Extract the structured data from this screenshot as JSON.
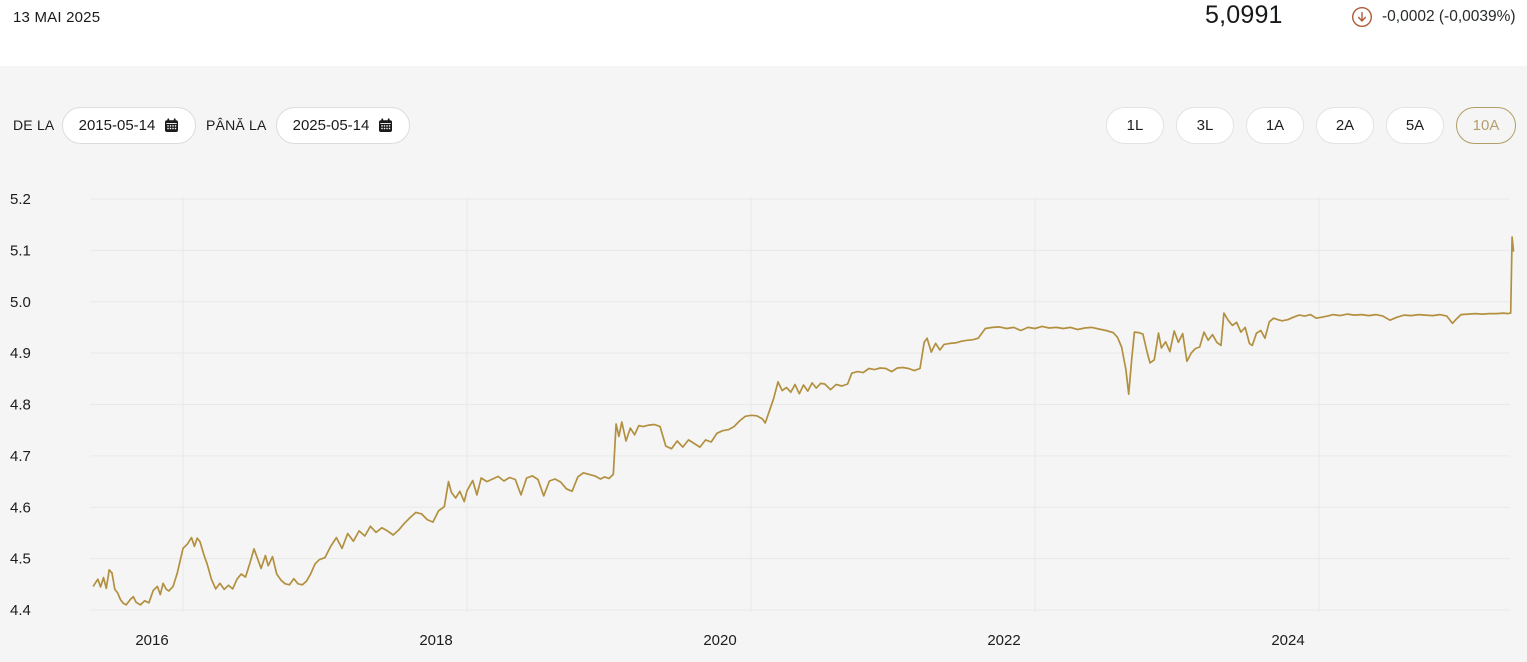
{
  "header": {
    "date": "13 MAI 2025",
    "price": "5,0991",
    "change": "-0,0002 (-0,0039%)",
    "change_icon": "circle-arrow-down-icon",
    "change_color": "#ae5b38"
  },
  "controls": {
    "from_label": "DE LA",
    "from_value": "2015-05-14",
    "to_label": "PÂNĂ LA",
    "to_value": "2025-05-14",
    "calendar_icon": "calendar-icon",
    "active_color": "#b19e66",
    "range_buttons": [
      {
        "label": "1L",
        "active": false
      },
      {
        "label": "3L",
        "active": false
      },
      {
        "label": "1A",
        "active": false
      },
      {
        "label": "2A",
        "active": false
      },
      {
        "label": "5A",
        "active": false
      },
      {
        "label": "10A",
        "active": true
      }
    ]
  },
  "chart_data": {
    "type": "line",
    "x_unit": "decimal_year",
    "x_ticks": [
      2016,
      2018,
      2020,
      2022,
      2024
    ],
    "y_ticks": [
      5.2,
      5.1,
      5.0,
      4.9,
      4.8,
      4.7,
      4.6,
      4.5,
      4.4
    ],
    "x_range": [
      2015.37,
      2025.42
    ],
    "y_range": [
      4.4,
      5.2
    ],
    "grid": true,
    "series": [
      {
        "color": "#b3903f",
        "points": [
          [
            2015.37,
            4.447
          ],
          [
            2015.4,
            4.46
          ],
          [
            2015.42,
            4.445
          ],
          [
            2015.44,
            4.463
          ],
          [
            2015.46,
            4.442
          ],
          [
            2015.48,
            4.478
          ],
          [
            2015.5,
            4.472
          ],
          [
            2015.52,
            4.44
          ],
          [
            2015.54,
            4.433
          ],
          [
            2015.56,
            4.42
          ],
          [
            2015.58,
            4.413
          ],
          [
            2015.6,
            4.41
          ],
          [
            2015.63,
            4.421
          ],
          [
            2015.65,
            4.426
          ],
          [
            2015.67,
            4.415
          ],
          [
            2015.7,
            4.41
          ],
          [
            2015.73,
            4.418
          ],
          [
            2015.76,
            4.414
          ],
          [
            2015.79,
            4.438
          ],
          [
            2015.82,
            4.446
          ],
          [
            2015.84,
            4.43
          ],
          [
            2015.86,
            4.452
          ],
          [
            2015.88,
            4.441
          ],
          [
            2015.9,
            4.437
          ],
          [
            2015.93,
            4.446
          ],
          [
            2015.96,
            4.472
          ],
          [
            2016.0,
            4.52
          ],
          [
            2016.03,
            4.528
          ],
          [
            2016.06,
            4.541
          ],
          [
            2016.08,
            4.524
          ],
          [
            2016.1,
            4.54
          ],
          [
            2016.12,
            4.533
          ],
          [
            2016.15,
            4.505
          ],
          [
            2016.17,
            4.49
          ],
          [
            2016.2,
            4.46
          ],
          [
            2016.23,
            4.441
          ],
          [
            2016.26,
            4.452
          ],
          [
            2016.29,
            4.44
          ],
          [
            2016.32,
            4.448
          ],
          [
            2016.35,
            4.441
          ],
          [
            2016.38,
            4.46
          ],
          [
            2016.41,
            4.47
          ],
          [
            2016.44,
            4.464
          ],
          [
            2016.47,
            4.49
          ],
          [
            2016.5,
            4.519
          ],
          [
            2016.52,
            4.504
          ],
          [
            2016.55,
            4.481
          ],
          [
            2016.58,
            4.506
          ],
          [
            2016.6,
            4.486
          ],
          [
            2016.63,
            4.504
          ],
          [
            2016.66,
            4.47
          ],
          [
            2016.69,
            4.458
          ],
          [
            2016.72,
            4.451
          ],
          [
            2016.75,
            4.449
          ],
          [
            2016.78,
            4.461
          ],
          [
            2016.81,
            4.451
          ],
          [
            2016.84,
            4.449
          ],
          [
            2016.87,
            4.456
          ],
          [
            2016.9,
            4.471
          ],
          [
            2016.93,
            4.49
          ],
          [
            2016.96,
            4.498
          ],
          [
            2017.0,
            4.502
          ],
          [
            2017.04,
            4.524
          ],
          [
            2017.08,
            4.541
          ],
          [
            2017.12,
            4.52
          ],
          [
            2017.16,
            4.549
          ],
          [
            2017.2,
            4.534
          ],
          [
            2017.24,
            4.554
          ],
          [
            2017.28,
            4.544
          ],
          [
            2017.32,
            4.563
          ],
          [
            2017.36,
            4.551
          ],
          [
            2017.4,
            4.56
          ],
          [
            2017.44,
            4.554
          ],
          [
            2017.48,
            4.546
          ],
          [
            2017.52,
            4.556
          ],
          [
            2017.56,
            4.569
          ],
          [
            2017.6,
            4.58
          ],
          [
            2017.64,
            4.59
          ],
          [
            2017.68,
            4.587
          ],
          [
            2017.72,
            4.576
          ],
          [
            2017.76,
            4.571
          ],
          [
            2017.8,
            4.593
          ],
          [
            2017.84,
            4.601
          ],
          [
            2017.87,
            4.65
          ],
          [
            2017.89,
            4.629
          ],
          [
            2017.92,
            4.618
          ],
          [
            2017.95,
            4.631
          ],
          [
            2017.98,
            4.611
          ],
          [
            2018.0,
            4.632
          ],
          [
            2018.04,
            4.652
          ],
          [
            2018.07,
            4.624
          ],
          [
            2018.1,
            4.657
          ],
          [
            2018.14,
            4.65
          ],
          [
            2018.18,
            4.655
          ],
          [
            2018.22,
            4.66
          ],
          [
            2018.26,
            4.651
          ],
          [
            2018.3,
            4.658
          ],
          [
            2018.34,
            4.654
          ],
          [
            2018.38,
            4.624
          ],
          [
            2018.42,
            4.657
          ],
          [
            2018.46,
            4.661
          ],
          [
            2018.5,
            4.654
          ],
          [
            2018.54,
            4.622
          ],
          [
            2018.58,
            4.651
          ],
          [
            2018.62,
            4.655
          ],
          [
            2018.66,
            4.649
          ],
          [
            2018.7,
            4.636
          ],
          [
            2018.74,
            4.631
          ],
          [
            2018.78,
            4.659
          ],
          [
            2018.82,
            4.667
          ],
          [
            2018.86,
            4.664
          ],
          [
            2018.9,
            4.661
          ],
          [
            2018.94,
            4.655
          ],
          [
            2018.97,
            4.659
          ],
          [
            2019.0,
            4.656
          ],
          [
            2019.03,
            4.664
          ],
          [
            2019.05,
            4.762
          ],
          [
            2019.07,
            4.738
          ],
          [
            2019.09,
            4.766
          ],
          [
            2019.12,
            4.729
          ],
          [
            2019.15,
            4.754
          ],
          [
            2019.18,
            4.741
          ],
          [
            2019.21,
            4.759
          ],
          [
            2019.24,
            4.757
          ],
          [
            2019.28,
            4.76
          ],
          [
            2019.32,
            4.761
          ],
          [
            2019.36,
            4.757
          ],
          [
            2019.4,
            4.719
          ],
          [
            2019.44,
            4.714
          ],
          [
            2019.48,
            4.729
          ],
          [
            2019.52,
            4.717
          ],
          [
            2019.56,
            4.731
          ],
          [
            2019.6,
            4.724
          ],
          [
            2019.64,
            4.717
          ],
          [
            2019.68,
            4.731
          ],
          [
            2019.72,
            4.727
          ],
          [
            2019.76,
            4.744
          ],
          [
            2019.8,
            4.749
          ],
          [
            2019.84,
            4.751
          ],
          [
            2019.88,
            4.757
          ],
          [
            2019.92,
            4.768
          ],
          [
            2019.96,
            4.777
          ],
          [
            2020.0,
            4.779
          ],
          [
            2020.04,
            4.778
          ],
          [
            2020.08,
            4.772
          ],
          [
            2020.1,
            4.764
          ],
          [
            2020.13,
            4.788
          ],
          [
            2020.16,
            4.812
          ],
          [
            2020.19,
            4.844
          ],
          [
            2020.22,
            4.827
          ],
          [
            2020.25,
            4.833
          ],
          [
            2020.28,
            4.824
          ],
          [
            2020.31,
            4.839
          ],
          [
            2020.34,
            4.821
          ],
          [
            2020.37,
            4.838
          ],
          [
            2020.4,
            4.826
          ],
          [
            2020.43,
            4.842
          ],
          [
            2020.46,
            4.832
          ],
          [
            2020.49,
            4.841
          ],
          [
            2020.52,
            4.84
          ],
          [
            2020.56,
            4.829
          ],
          [
            2020.6,
            4.839
          ],
          [
            2020.64,
            4.836
          ],
          [
            2020.68,
            4.84
          ],
          [
            2020.71,
            4.861
          ],
          [
            2020.75,
            4.864
          ],
          [
            2020.79,
            4.862
          ],
          [
            2020.83,
            4.87
          ],
          [
            2020.87,
            4.868
          ],
          [
            2020.91,
            4.871
          ],
          [
            2020.95,
            4.87
          ],
          [
            2020.99,
            4.864
          ],
          [
            2021.03,
            4.871
          ],
          [
            2021.07,
            4.872
          ],
          [
            2021.11,
            4.87
          ],
          [
            2021.15,
            4.866
          ],
          [
            2021.19,
            4.87
          ],
          [
            2021.22,
            4.921
          ],
          [
            2021.24,
            4.929
          ],
          [
            2021.27,
            4.902
          ],
          [
            2021.3,
            4.919
          ],
          [
            2021.33,
            4.906
          ],
          [
            2021.36,
            4.917
          ],
          [
            2021.4,
            4.919
          ],
          [
            2021.44,
            4.92
          ],
          [
            2021.48,
            4.923
          ],
          [
            2021.52,
            4.925
          ],
          [
            2021.56,
            4.926
          ],
          [
            2021.6,
            4.929
          ],
          [
            2021.65,
            4.948
          ],
          [
            2021.7,
            4.95
          ],
          [
            2021.75,
            4.951
          ],
          [
            2021.8,
            4.948
          ],
          [
            2021.85,
            4.95
          ],
          [
            2021.9,
            4.944
          ],
          [
            2021.95,
            4.95
          ],
          [
            2022.0,
            4.948
          ],
          [
            2022.05,
            4.952
          ],
          [
            2022.1,
            4.949
          ],
          [
            2022.15,
            4.95
          ],
          [
            2022.2,
            4.948
          ],
          [
            2022.25,
            4.95
          ],
          [
            2022.3,
            4.946
          ],
          [
            2022.35,
            4.949
          ],
          [
            2022.4,
            4.95
          ],
          [
            2022.45,
            4.947
          ],
          [
            2022.5,
            4.944
          ],
          [
            2022.55,
            4.94
          ],
          [
            2022.58,
            4.931
          ],
          [
            2022.61,
            4.912
          ],
          [
            2022.64,
            4.868
          ],
          [
            2022.66,
            4.82
          ],
          [
            2022.68,
            4.886
          ],
          [
            2022.7,
            4.941
          ],
          [
            2022.73,
            4.94
          ],
          [
            2022.76,
            4.937
          ],
          [
            2022.79,
            4.901
          ],
          [
            2022.81,
            4.881
          ],
          [
            2022.84,
            4.887
          ],
          [
            2022.87,
            4.939
          ],
          [
            2022.89,
            4.91
          ],
          [
            2022.92,
            4.922
          ],
          [
            2022.95,
            4.903
          ],
          [
            2022.98,
            4.943
          ],
          [
            2023.01,
            4.921
          ],
          [
            2023.04,
            4.938
          ],
          [
            2023.07,
            4.884
          ],
          [
            2023.1,
            4.9
          ],
          [
            2023.13,
            4.909
          ],
          [
            2023.16,
            4.912
          ],
          [
            2023.19,
            4.941
          ],
          [
            2023.22,
            4.925
          ],
          [
            2023.25,
            4.936
          ],
          [
            2023.28,
            4.921
          ],
          [
            2023.31,
            4.915
          ],
          [
            2023.33,
            4.978
          ],
          [
            2023.36,
            4.964
          ],
          [
            2023.39,
            4.954
          ],
          [
            2023.42,
            4.96
          ],
          [
            2023.45,
            4.941
          ],
          [
            2023.48,
            4.95
          ],
          [
            2023.51,
            4.919
          ],
          [
            2023.53,
            4.915
          ],
          [
            2023.56,
            4.939
          ],
          [
            2023.59,
            4.944
          ],
          [
            2023.62,
            4.929
          ],
          [
            2023.65,
            4.961
          ],
          [
            2023.68,
            4.968
          ],
          [
            2023.71,
            4.965
          ],
          [
            2023.74,
            4.963
          ],
          [
            2023.78,
            4.965
          ],
          [
            2023.82,
            4.97
          ],
          [
            2023.86,
            4.974
          ],
          [
            2023.9,
            4.972
          ],
          [
            2023.94,
            4.975
          ],
          [
            2023.98,
            4.968
          ],
          [
            2024.02,
            4.97
          ],
          [
            2024.06,
            4.972
          ],
          [
            2024.1,
            4.975
          ],
          [
            2024.15,
            4.973
          ],
          [
            2024.2,
            4.976
          ],
          [
            2024.25,
            4.974
          ],
          [
            2024.3,
            4.975
          ],
          [
            2024.35,
            4.973
          ],
          [
            2024.4,
            4.975
          ],
          [
            2024.45,
            4.972
          ],
          [
            2024.5,
            4.964
          ],
          [
            2024.55,
            4.97
          ],
          [
            2024.6,
            4.974
          ],
          [
            2024.65,
            4.973
          ],
          [
            2024.7,
            4.975
          ],
          [
            2024.75,
            4.974
          ],
          [
            2024.8,
            4.973
          ],
          [
            2024.85,
            4.975
          ],
          [
            2024.9,
            4.972
          ],
          [
            2024.94,
            4.958
          ],
          [
            2024.97,
            4.967
          ],
          [
            2025.0,
            4.975
          ],
          [
            2025.05,
            4.976
          ],
          [
            2025.1,
            4.977
          ],
          [
            2025.15,
            4.976
          ],
          [
            2025.2,
            4.977
          ],
          [
            2025.25,
            4.977
          ],
          [
            2025.3,
            4.978
          ],
          [
            2025.33,
            4.977
          ],
          [
            2025.35,
            4.978
          ],
          [
            2025.36,
            5.126
          ],
          [
            2025.37,
            5.099
          ]
        ]
      }
    ]
  }
}
